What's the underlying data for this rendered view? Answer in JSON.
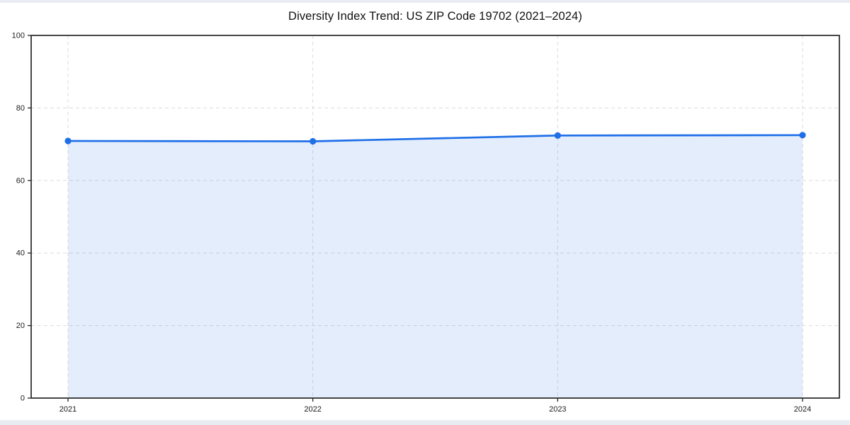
{
  "chart_data": {
    "type": "line",
    "area_fill": true,
    "title": "Diversity Index Trend: US ZIP Code 19702 (2021–2024)",
    "xlabel": "",
    "ylabel": "",
    "x": [
      "2021",
      "2022",
      "2023",
      "2024"
    ],
    "series": [
      {
        "name": "Diversity Index",
        "values": [
          70.9,
          70.8,
          72.4,
          72.5
        ]
      }
    ],
    "ylim": [
      0,
      100
    ],
    "yticks": [
      0,
      20,
      40,
      60,
      80,
      100
    ],
    "grid": "dashed",
    "legend_position": "none",
    "colors": {
      "line": "#1f6fe8",
      "marker": "#1f6fe8",
      "fill": "#1f6fe8",
      "fill_opacity": 0.12,
      "grid": "#dcdcdc",
      "spine": "#262626",
      "title_text": "#111111",
      "tick_text": "#1c1c1c",
      "background": "#ffffff"
    }
  }
}
